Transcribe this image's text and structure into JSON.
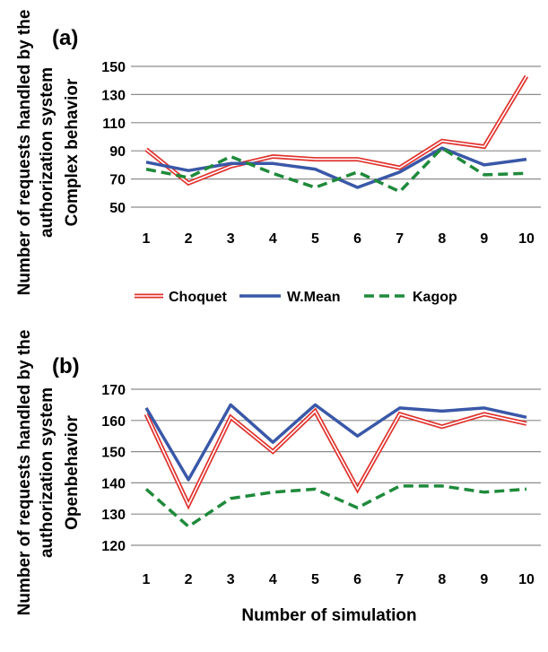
{
  "chart_data": [
    {
      "type": "line",
      "panel_label": "(a)",
      "ylabel_lines": [
        "Number of requests handled by the",
        "authorization system",
        "Complex behavior"
      ],
      "xlabel": "",
      "categories": [
        "1",
        "2",
        "3",
        "4",
        "5",
        "6",
        "7",
        "8",
        "9",
        "10"
      ],
      "yticks": [
        50,
        70,
        90,
        110,
        130,
        150
      ],
      "ylim": [
        50,
        150
      ],
      "grid": "horizontal",
      "legend_position": "bottom",
      "series": [
        {
          "name": "Choquet",
          "style": "double-line",
          "color": "#e0322d",
          "values": [
            91,
            67,
            79,
            86,
            84,
            84,
            78,
            97,
            93,
            143
          ]
        },
        {
          "name": "W.Mean",
          "style": "solid",
          "color": "#3a58a8",
          "values": [
            82,
            76,
            81,
            81,
            77,
            64,
            75,
            92,
            80,
            84
          ]
        },
        {
          "name": "Kagop",
          "style": "dashed",
          "color": "#1f8a3b",
          "values": [
            77,
            71,
            86,
            74,
            64,
            75,
            61,
            92,
            73,
            74
          ]
        }
      ]
    },
    {
      "type": "line",
      "panel_label": "(b)",
      "ylabel_lines": [
        "Number of requests handled by the",
        "authorization system",
        "Openbehavior"
      ],
      "xlabel": "Number of simulation",
      "categories": [
        "1",
        "2",
        "3",
        "4",
        "5",
        "6",
        "7",
        "8",
        "9",
        "10"
      ],
      "yticks": [
        120,
        130,
        140,
        150,
        160,
        170
      ],
      "ylim": [
        120,
        170
      ],
      "grid": "horizontal",
      "series": [
        {
          "name": "Choquet",
          "style": "double-line",
          "color": "#e0322d",
          "values": [
            162,
            133,
            161,
            150,
            163,
            138,
            162,
            158,
            162,
            159
          ]
        },
        {
          "name": "W.Mean",
          "style": "solid",
          "color": "#3a58a8",
          "values": [
            164,
            141,
            165,
            153,
            165,
            155,
            164,
            163,
            164,
            161
          ]
        },
        {
          "name": "Kagop",
          "style": "dashed",
          "color": "#1f8a3b",
          "values": [
            138,
            126,
            135,
            137,
            138,
            132,
            139,
            139,
            137,
            138
          ]
        }
      ]
    }
  ]
}
